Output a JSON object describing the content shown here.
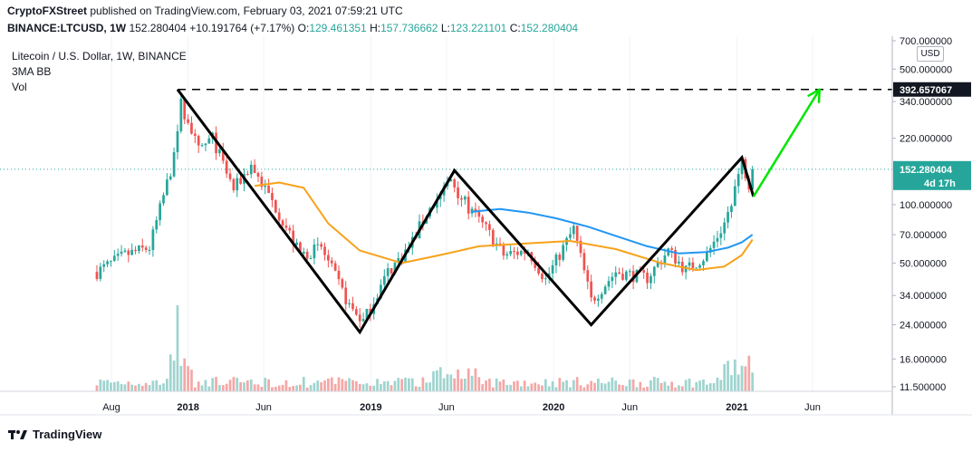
{
  "header": {
    "publisher": "CryptoFXStreet",
    "published_text": "published on TradingView.com, February 03, 2021 07:59:21 UTC",
    "symbol_line": "BINANCE:LTCUSD, 1W",
    "last": "152.280404",
    "change": "+10.191764 (+7.17%)",
    "o_label": "O:",
    "o_value": "129.461351",
    "h_label": "H:",
    "h_value": "157.736662",
    "l_label": "L:",
    "l_value": "123.221101",
    "c_label": "C:",
    "c_value": "152.280404"
  },
  "legend": {
    "title": "Litecoin / U.S. Dollar, 1W, BINANCE",
    "indicator": "3MA BB",
    "volume": "Vol"
  },
  "price_scale": {
    "currency": "USD",
    "resistance_label": "392.657067",
    "last_price_label": "152.280404",
    "countdown_label": "4d 17h"
  },
  "footer": {
    "brand": "TradingView"
  },
  "colors": {
    "up": "#26a69a",
    "down": "#ef5350",
    "vol_up": "#9fd4cf",
    "vol_down": "#f4a7a6",
    "ma_fast": "#2196f3",
    "ma_slow": "#f7a21b",
    "pattern": "#000000",
    "projection": "#00e600",
    "label_bg": "#131722",
    "price_bg": "#26a69a"
  },
  "chart_data": {
    "type": "candlestick",
    "y_scale": "log",
    "y_ticks": [
      700,
      500,
      340,
      220,
      100,
      70,
      50,
      34,
      24,
      16,
      11.5
    ],
    "y_tick_labels": [
      "700.000000",
      "500.000000",
      "340.000000",
      "220.000000",
      "100.000000",
      "70.000000",
      "50.000000",
      "34.000000",
      "24.000000",
      "16.000000",
      "11.500000"
    ],
    "x_ticks": [
      "Aug",
      "2018",
      "Jun",
      "2019",
      "Jun",
      "2020",
      "Jun",
      "2021",
      "Jun"
    ],
    "x_tick_dates": [
      "2017-08-01",
      "2018-01-01",
      "2018-06-01",
      "2019-01-01",
      "2019-06-01",
      "2020-01-01",
      "2020-06-01",
      "2021-01-01",
      "2021-06-01"
    ],
    "resistance_level": 392.657067,
    "last_price": 152.280404,
    "pattern_points": [
      {
        "date": "2017-12-11",
        "price": 392.66
      },
      {
        "date": "2018-12-10",
        "price": 22.0
      },
      {
        "date": "2019-06-17",
        "price": 150.0
      },
      {
        "date": "2020-03-16",
        "price": 24.0
      },
      {
        "date": "2021-01-11",
        "price": 175.0
      },
      {
        "date": "2021-02-03",
        "price": 110.0
      }
    ],
    "projection_points": [
      {
        "date": "2021-02-03",
        "price": 110.0
      },
      {
        "date": "2021-06-15",
        "price": 392.66
      }
    ],
    "price_anchors": [
      [
        "2017-07-03",
        45
      ],
      [
        "2017-08-28",
        55
      ],
      [
        "2017-10-16",
        60
      ],
      [
        "2017-11-27",
        150
      ],
      [
        "2017-12-18",
        330
      ],
      [
        "2018-01-22",
        190
      ],
      [
        "2018-02-19",
        220
      ],
      [
        "2018-04-02",
        120
      ],
      [
        "2018-05-07",
        160
      ],
      [
        "2018-07-02",
        90
      ],
      [
        "2018-08-13",
        55
      ],
      [
        "2018-09-24",
        60
      ],
      [
        "2018-11-19",
        30
      ],
      [
        "2018-12-17",
        25
      ],
      [
        "2019-02-04",
        45
      ],
      [
        "2019-03-18",
        60
      ],
      [
        "2019-04-22",
        90
      ],
      [
        "2019-06-10",
        135
      ],
      [
        "2019-07-15",
        95
      ],
      [
        "2019-08-19",
        75
      ],
      [
        "2019-09-23",
        55
      ],
      [
        "2019-11-11",
        58
      ],
      [
        "2019-12-16",
        41
      ],
      [
        "2020-02-10",
        75
      ],
      [
        "2020-03-16",
        32
      ],
      [
        "2020-05-04",
        45
      ],
      [
        "2020-07-06",
        42
      ],
      [
        "2020-08-17",
        58
      ],
      [
        "2020-09-21",
        46
      ],
      [
        "2020-11-02",
        55
      ],
      [
        "2020-12-07",
        80
      ],
      [
        "2021-01-11",
        165
      ],
      [
        "2021-01-25",
        130
      ],
      [
        "2021-02-01",
        152
      ]
    ],
    "ma_fast_points": [
      [
        "2019-07-22",
        92
      ],
      [
        "2019-09-16",
        95
      ],
      [
        "2019-11-11",
        91
      ],
      [
        "2020-01-06",
        85
      ],
      [
        "2020-03-09",
        77
      ],
      [
        "2020-05-04",
        69
      ],
      [
        "2020-07-06",
        61
      ],
      [
        "2020-09-07",
        56
      ],
      [
        "2020-11-02",
        57
      ],
      [
        "2020-12-14",
        60
      ],
      [
        "2021-01-11",
        64
      ],
      [
        "2021-02-01",
        70
      ]
    ],
    "ma_slow_points": [
      [
        "2018-05-14",
        125
      ],
      [
        "2018-07-02",
        130
      ],
      [
        "2018-08-20",
        122
      ],
      [
        "2018-10-08",
        80
      ],
      [
        "2018-12-10",
        58
      ],
      [
        "2019-03-04",
        50
      ],
      [
        "2019-05-20",
        55
      ],
      [
        "2019-08-05",
        61
      ],
      [
        "2019-11-04",
        63
      ],
      [
        "2020-02-03",
        65
      ],
      [
        "2020-05-04",
        59
      ],
      [
        "2020-08-03",
        50
      ],
      [
        "2020-10-12",
        46
      ],
      [
        "2020-12-07",
        48
      ],
      [
        "2021-01-11",
        55
      ],
      [
        "2021-02-01",
        66
      ]
    ]
  }
}
